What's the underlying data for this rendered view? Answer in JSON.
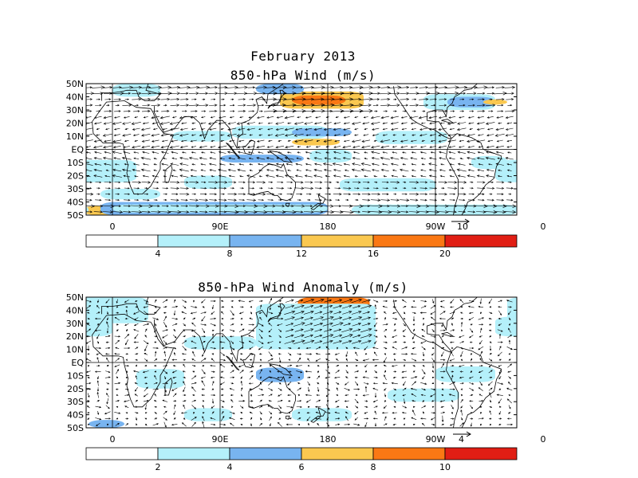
{
  "titles": {
    "month": "February 2013",
    "wind": "850-hPa Wind (m/s)",
    "anomaly": "850-hPa Wind Anomaly (m/s)"
  },
  "axes": {
    "x_ticks": [
      "0",
      "90E",
      "180",
      "90W",
      "0"
    ],
    "y_ticks": [
      "50N",
      "40N",
      "30N",
      "20N",
      "10N",
      "EQ",
      "10S",
      "20S",
      "30S",
      "40S",
      "50S"
    ]
  },
  "panels": [
    {
      "id": "wind",
      "reference_vector_label": "10",
      "colorbar": {
        "labels": [
          "4",
          "8",
          "12",
          "16",
          "20"
        ],
        "colors": [
          "#ffffff",
          "#b4f0fa",
          "#78b4f0",
          "#fac850",
          "#fa7814",
          "#e11e14"
        ]
      }
    },
    {
      "id": "anomaly",
      "reference_vector_label": "4",
      "colorbar": {
        "labels": [
          "2",
          "4",
          "6",
          "8",
          "10"
        ],
        "colors": [
          "#ffffff",
          "#b4f0fa",
          "#78b4f0",
          "#fac850",
          "#fa7814",
          "#e11e14"
        ]
      }
    }
  ]
}
